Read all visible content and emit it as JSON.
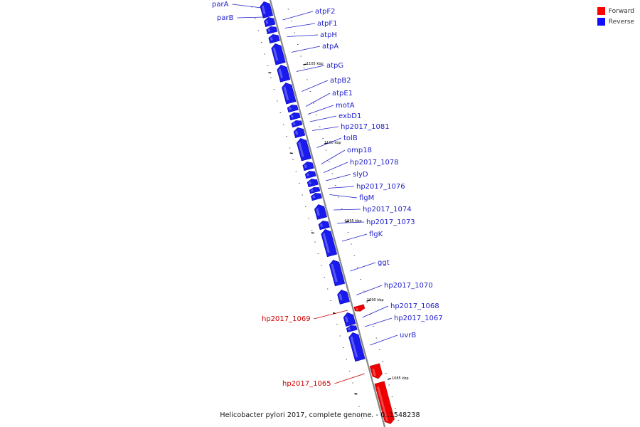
{
  "legend": {
    "forward_label": "Forward",
    "reverse_label": "Reverse",
    "forward_color": "#ff0000",
    "reverse_color": "#1010ff"
  },
  "caption": "Helicobacter pylori 2017, complete genome. - 0..1548238",
  "colors": {
    "forward_fill": "#ee0000",
    "forward_label": "#cc0000",
    "reverse_fill": "#1a1aee",
    "reverse_label": "#2020cc",
    "backbone": "#888888"
  },
  "ticks": [
    {
      "label": "1105 kbp"
    },
    {
      "label": "1100 kbp"
    },
    {
      "label": "1095 kbp"
    },
    {
      "label": "1090 kbp"
    },
    {
      "label": "1085 kbp"
    }
  ],
  "genes": [
    {
      "name": "parA",
      "strand": "reverse"
    },
    {
      "name": "parB",
      "strand": "reverse"
    },
    {
      "name": "atpF2",
      "strand": "reverse"
    },
    {
      "name": "atpF1",
      "strand": "reverse"
    },
    {
      "name": "atpH",
      "strand": "reverse"
    },
    {
      "name": "atpA",
      "strand": "reverse"
    },
    {
      "name": "atpG",
      "strand": "reverse"
    },
    {
      "name": "atpB2",
      "strand": "reverse"
    },
    {
      "name": "atpE1",
      "strand": "reverse"
    },
    {
      "name": "motA",
      "strand": "reverse"
    },
    {
      "name": "exbD1",
      "strand": "reverse"
    },
    {
      "name": "hp2017_1081",
      "strand": "reverse"
    },
    {
      "name": "tolB",
      "strand": "reverse"
    },
    {
      "name": "omp18",
      "strand": "reverse"
    },
    {
      "name": "hp2017_1078",
      "strand": "reverse"
    },
    {
      "name": "slyD",
      "strand": "reverse"
    },
    {
      "name": "hp2017_1076",
      "strand": "reverse"
    },
    {
      "name": "flgM",
      "strand": "reverse"
    },
    {
      "name": "hp2017_1074",
      "strand": "reverse"
    },
    {
      "name": "hp2017_1073",
      "strand": "reverse"
    },
    {
      "name": "flgK",
      "strand": "reverse"
    },
    {
      "name": "ggt",
      "strand": "reverse"
    },
    {
      "name": "hp2017_1070",
      "strand": "reverse"
    },
    {
      "name": "hp2017_1069",
      "strand": "forward"
    },
    {
      "name": "hp2017_1068",
      "strand": "reverse"
    },
    {
      "name": "hp2017_1067",
      "strand": "reverse"
    },
    {
      "name": "uvrB",
      "strand": "reverse"
    },
    {
      "name": "hp2017_1065",
      "strand": "forward"
    },
    {
      "name": "",
      "strand": "forward"
    }
  ]
}
